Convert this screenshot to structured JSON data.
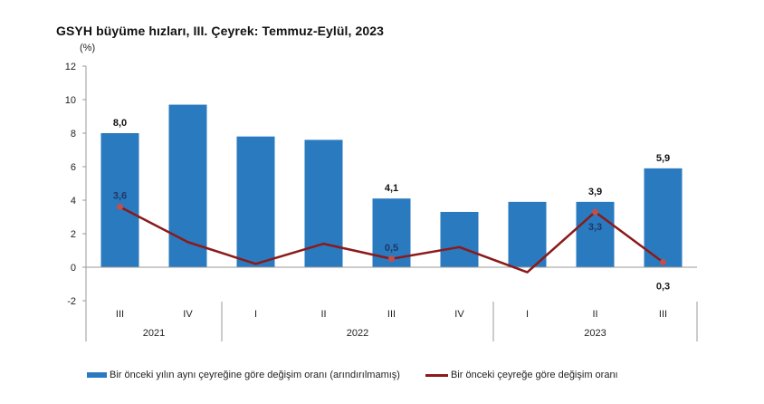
{
  "chart_data": {
    "type": "bar",
    "title": "GSYH büyüme hızları, III. Çeyrek: Temmuz-Eylül, 2023",
    "ylabel": "(%)",
    "xlabel": "",
    "ylim": [
      -2,
      12
    ],
    "yticks": [
      12,
      10,
      8,
      6,
      4,
      2,
      0,
      -2
    ],
    "grid": false,
    "legend_position": "bottom",
    "categories": [
      "III",
      "IV",
      "I",
      "II",
      "III",
      "IV",
      "I",
      "II",
      "III"
    ],
    "year_groups": [
      {
        "label": "2021",
        "span": 2
      },
      {
        "label": "2022",
        "span": 4
      },
      {
        "label": "2023",
        "span": 3
      }
    ],
    "series": [
      {
        "name": "Bir önceki yılın aynı çeyreğine göre değişim oranı (arındırılmamış)",
        "type": "bar",
        "color": "#2a7abf",
        "values": [
          8.0,
          9.7,
          7.8,
          7.6,
          4.1,
          3.3,
          3.9,
          3.9,
          5.9
        ],
        "labels": [
          "8,0",
          "",
          "",
          "",
          "4,1",
          "",
          "",
          "3,9",
          "5,9"
        ]
      },
      {
        "name": "Bir önceki çeyreğe göre değişim oranı",
        "type": "line",
        "color": "#8b1a1a",
        "values": [
          3.6,
          1.5,
          0.2,
          1.4,
          0.5,
          1.2,
          -0.3,
          3.3,
          0.3
        ],
        "labels": [
          "3,6",
          "",
          "",
          "",
          "0,5",
          "",
          "",
          "3,3",
          "0,3"
        ]
      }
    ]
  },
  "header": {
    "title": "GSYH büyüme hızları, III. Çeyrek: Temmuz-Eylül, 2023",
    "unit": "(%)"
  },
  "legend": {
    "bar_label": "Bir önceki yılın aynı çeyreğine göre değişim oranı (arındırılmamış)",
    "line_label": "Bir önceki çeyreğe göre değişim oranı"
  }
}
